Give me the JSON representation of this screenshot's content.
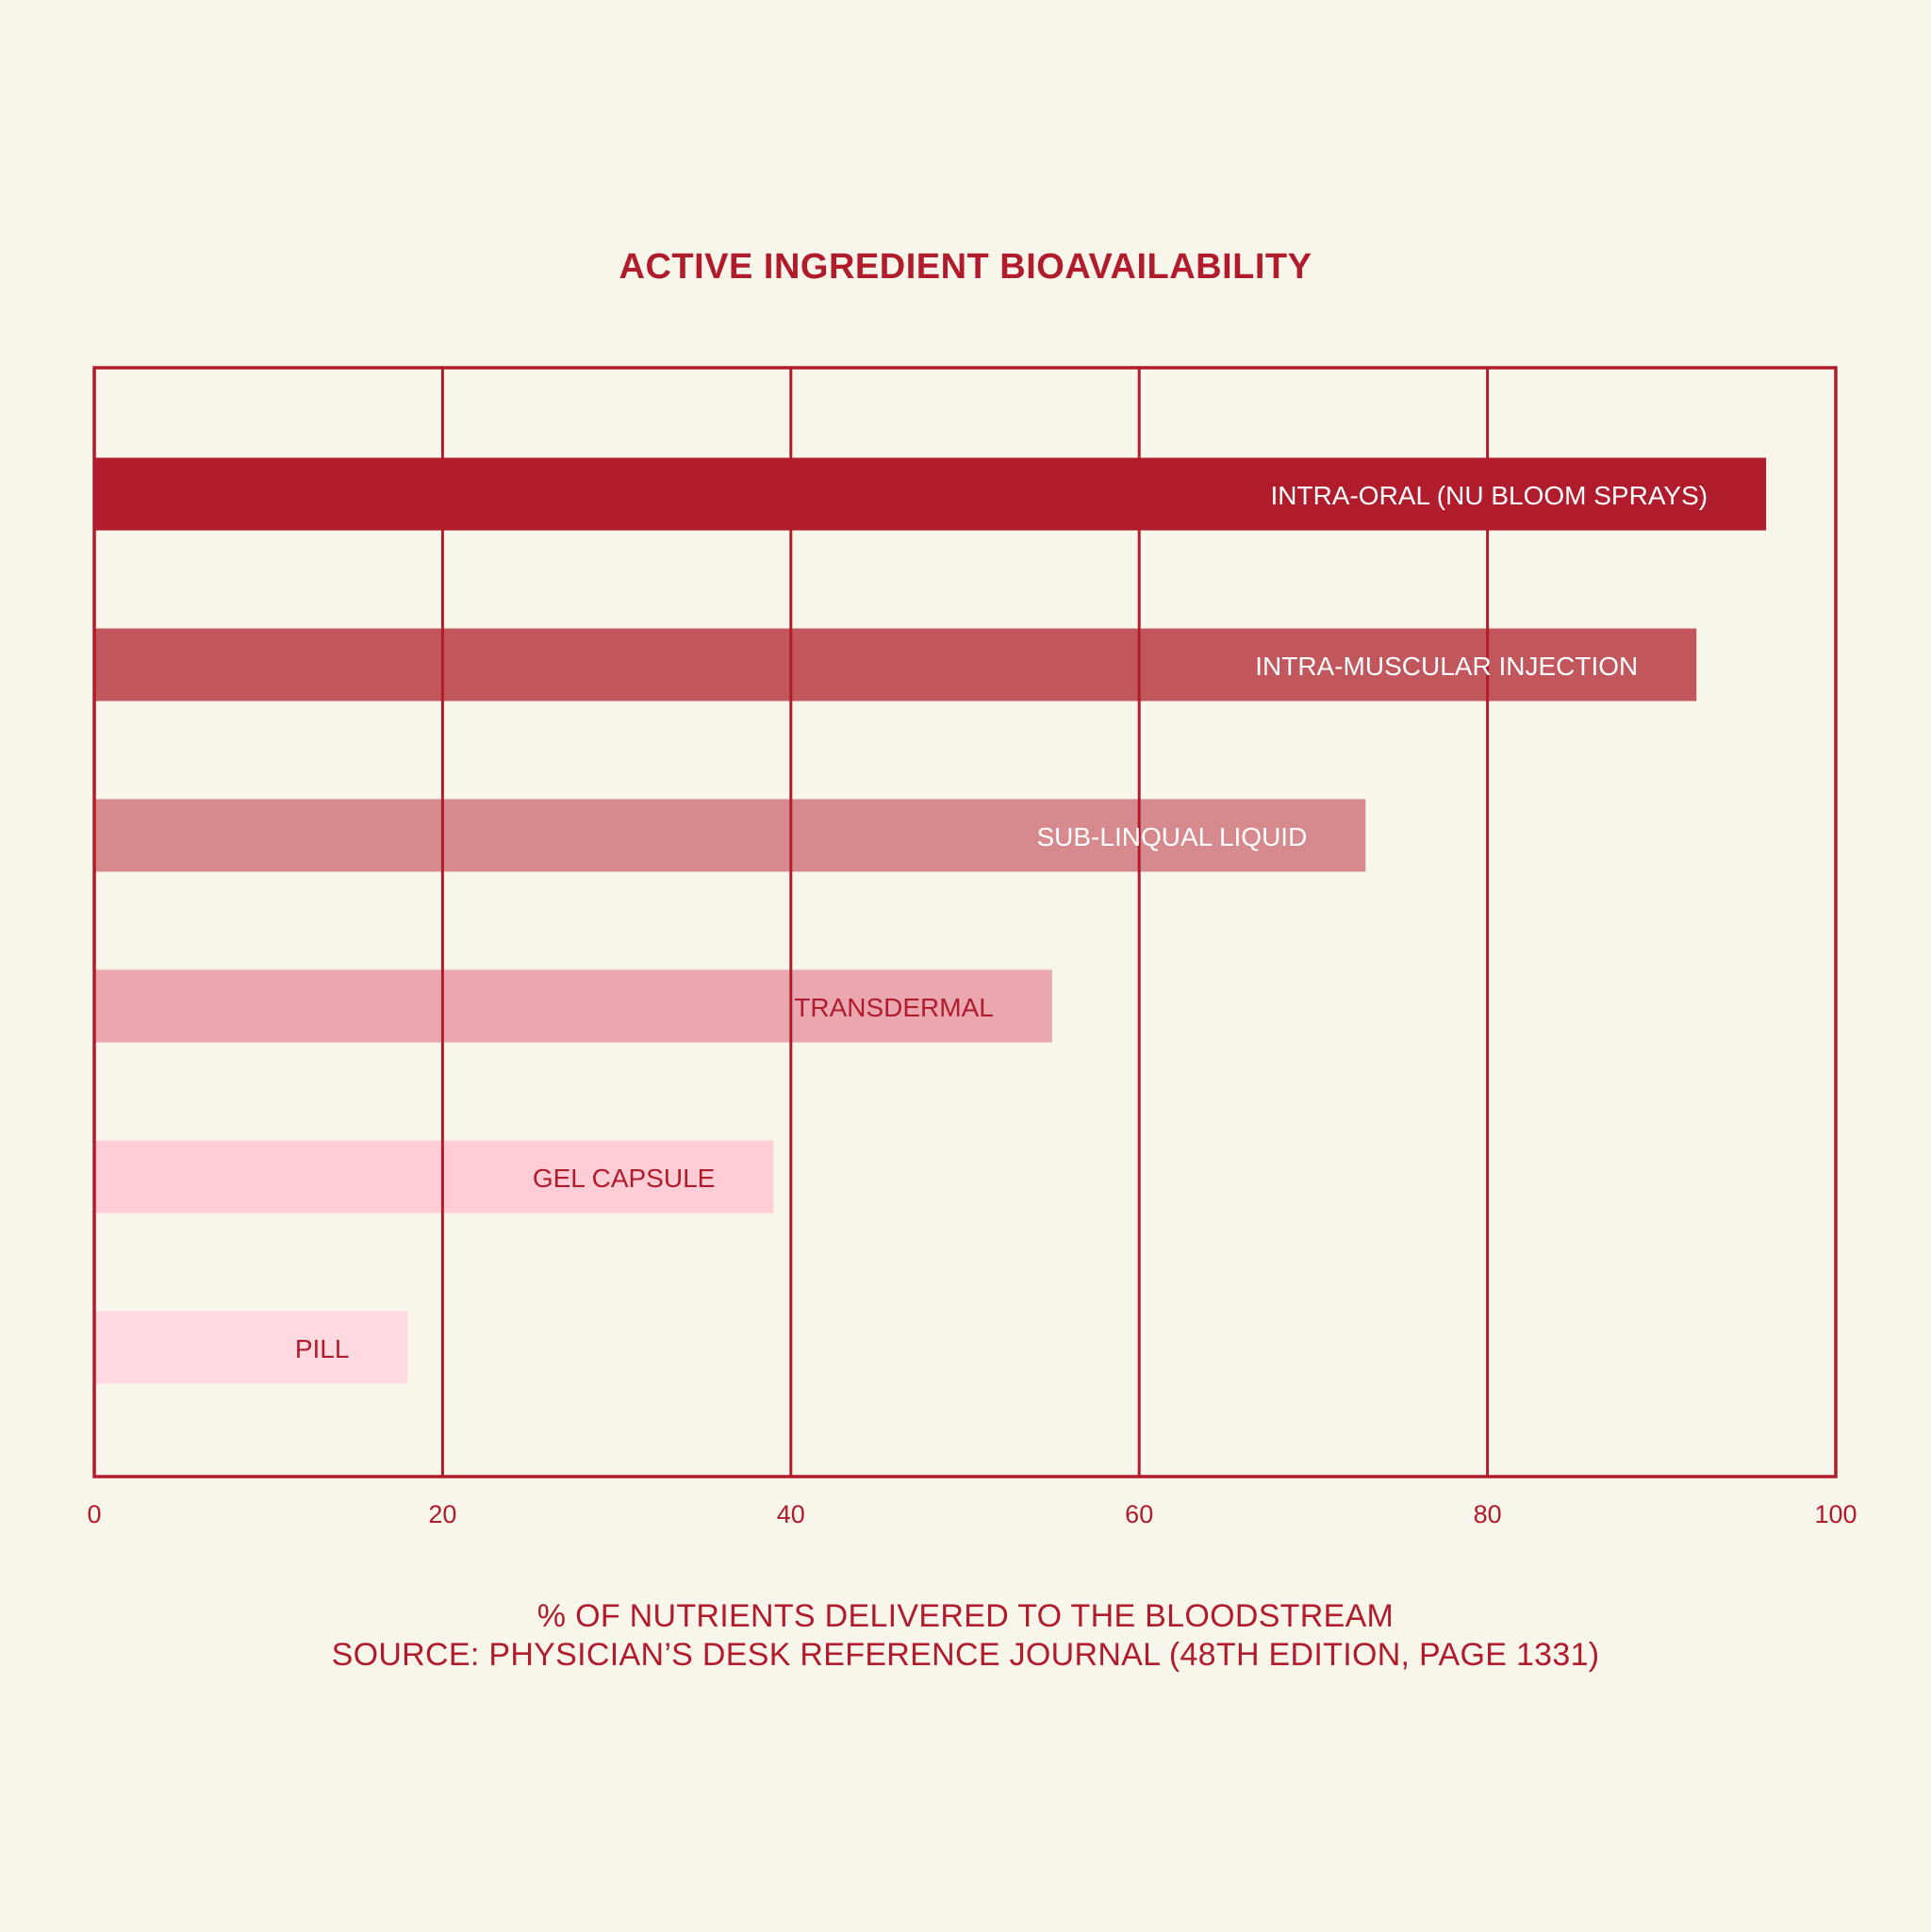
{
  "chart_data": {
    "type": "bar",
    "orientation": "horizontal",
    "title": "ACTIVE INGREDIENT BIOAVAILABILITY",
    "xlabel": "% OF NUTRIENTS DELIVERED TO THE BLOODSTREAM",
    "source": "SOURCE: PHYSICIAN’S DESK REFERENCE JOURNAL (48TH EDITION, PAGE 1331)",
    "xlim": [
      0,
      100
    ],
    "xticks": [
      0,
      20,
      40,
      60,
      80,
      100
    ],
    "grid": true,
    "legend": "none",
    "categories": [
      "INTRA-ORAL (NU BLOOM SPRAYS)",
      "INTRA-MUSCULAR INJECTION",
      "SUB-LINQUAL LIQUID",
      "TRANSDERMAL",
      "GEL CAPSULE",
      "PILL"
    ],
    "values": [
      96,
      92,
      73,
      55,
      39,
      18
    ],
    "bar_colors": [
      "#b01c2c",
      "#c1565c",
      "#d68a8e",
      "#eaa7b0",
      "#ffcdd6",
      "#ffd9e0"
    ],
    "label_colors": [
      "#ffffff",
      "#ffffff",
      "#ffffff",
      "#b01c2c",
      "#b01c2c",
      "#b01c2c"
    ]
  },
  "colors": {
    "accent": "#b01c2c",
    "background": "#f8f5eb"
  }
}
